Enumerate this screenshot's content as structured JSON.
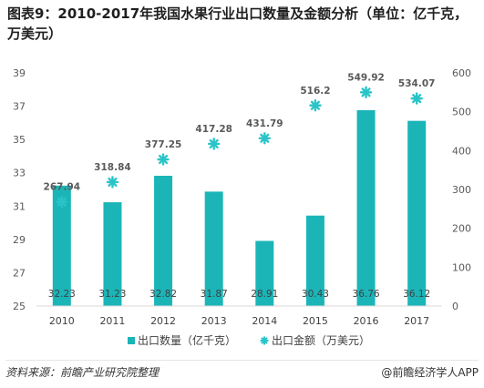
{
  "chart_data": {
    "type": "bar",
    "title": "图表9：2010-2017年我国水果行业出口数量及金额分析（单位：亿千克，万美元）",
    "categories": [
      "2010",
      "2011",
      "2012",
      "2013",
      "2014",
      "2015",
      "2016",
      "2017"
    ],
    "series": [
      {
        "name": "出口数量（亿千克）",
        "type": "bar",
        "axis": "left",
        "values": [
          32.23,
          31.23,
          32.82,
          31.87,
          28.91,
          30.43,
          36.76,
          36.12
        ],
        "color": "#1bb5b8"
      },
      {
        "name": "出口金额（万美元）",
        "type": "scatter",
        "axis": "right",
        "values": [
          267.94,
          318.84,
          377.25,
          417.28,
          431.79,
          516.2,
          549.92,
          534.07
        ],
        "color": "#2ac4c8"
      }
    ],
    "ylim_left": [
      25,
      39
    ],
    "yticks_left": [
      "25",
      "27",
      "29",
      "31",
      "33",
      "35",
      "37",
      "39"
    ],
    "ylim_right": [
      0,
      600
    ],
    "yticks_right": [
      "0",
      "100",
      "200",
      "300",
      "400",
      "500",
      "600"
    ],
    "grid": false,
    "legend_position": "bottom"
  },
  "footer": {
    "source": "资料来源：前瞻产业研究院整理",
    "brand": "@前瞻经济学人APP"
  }
}
